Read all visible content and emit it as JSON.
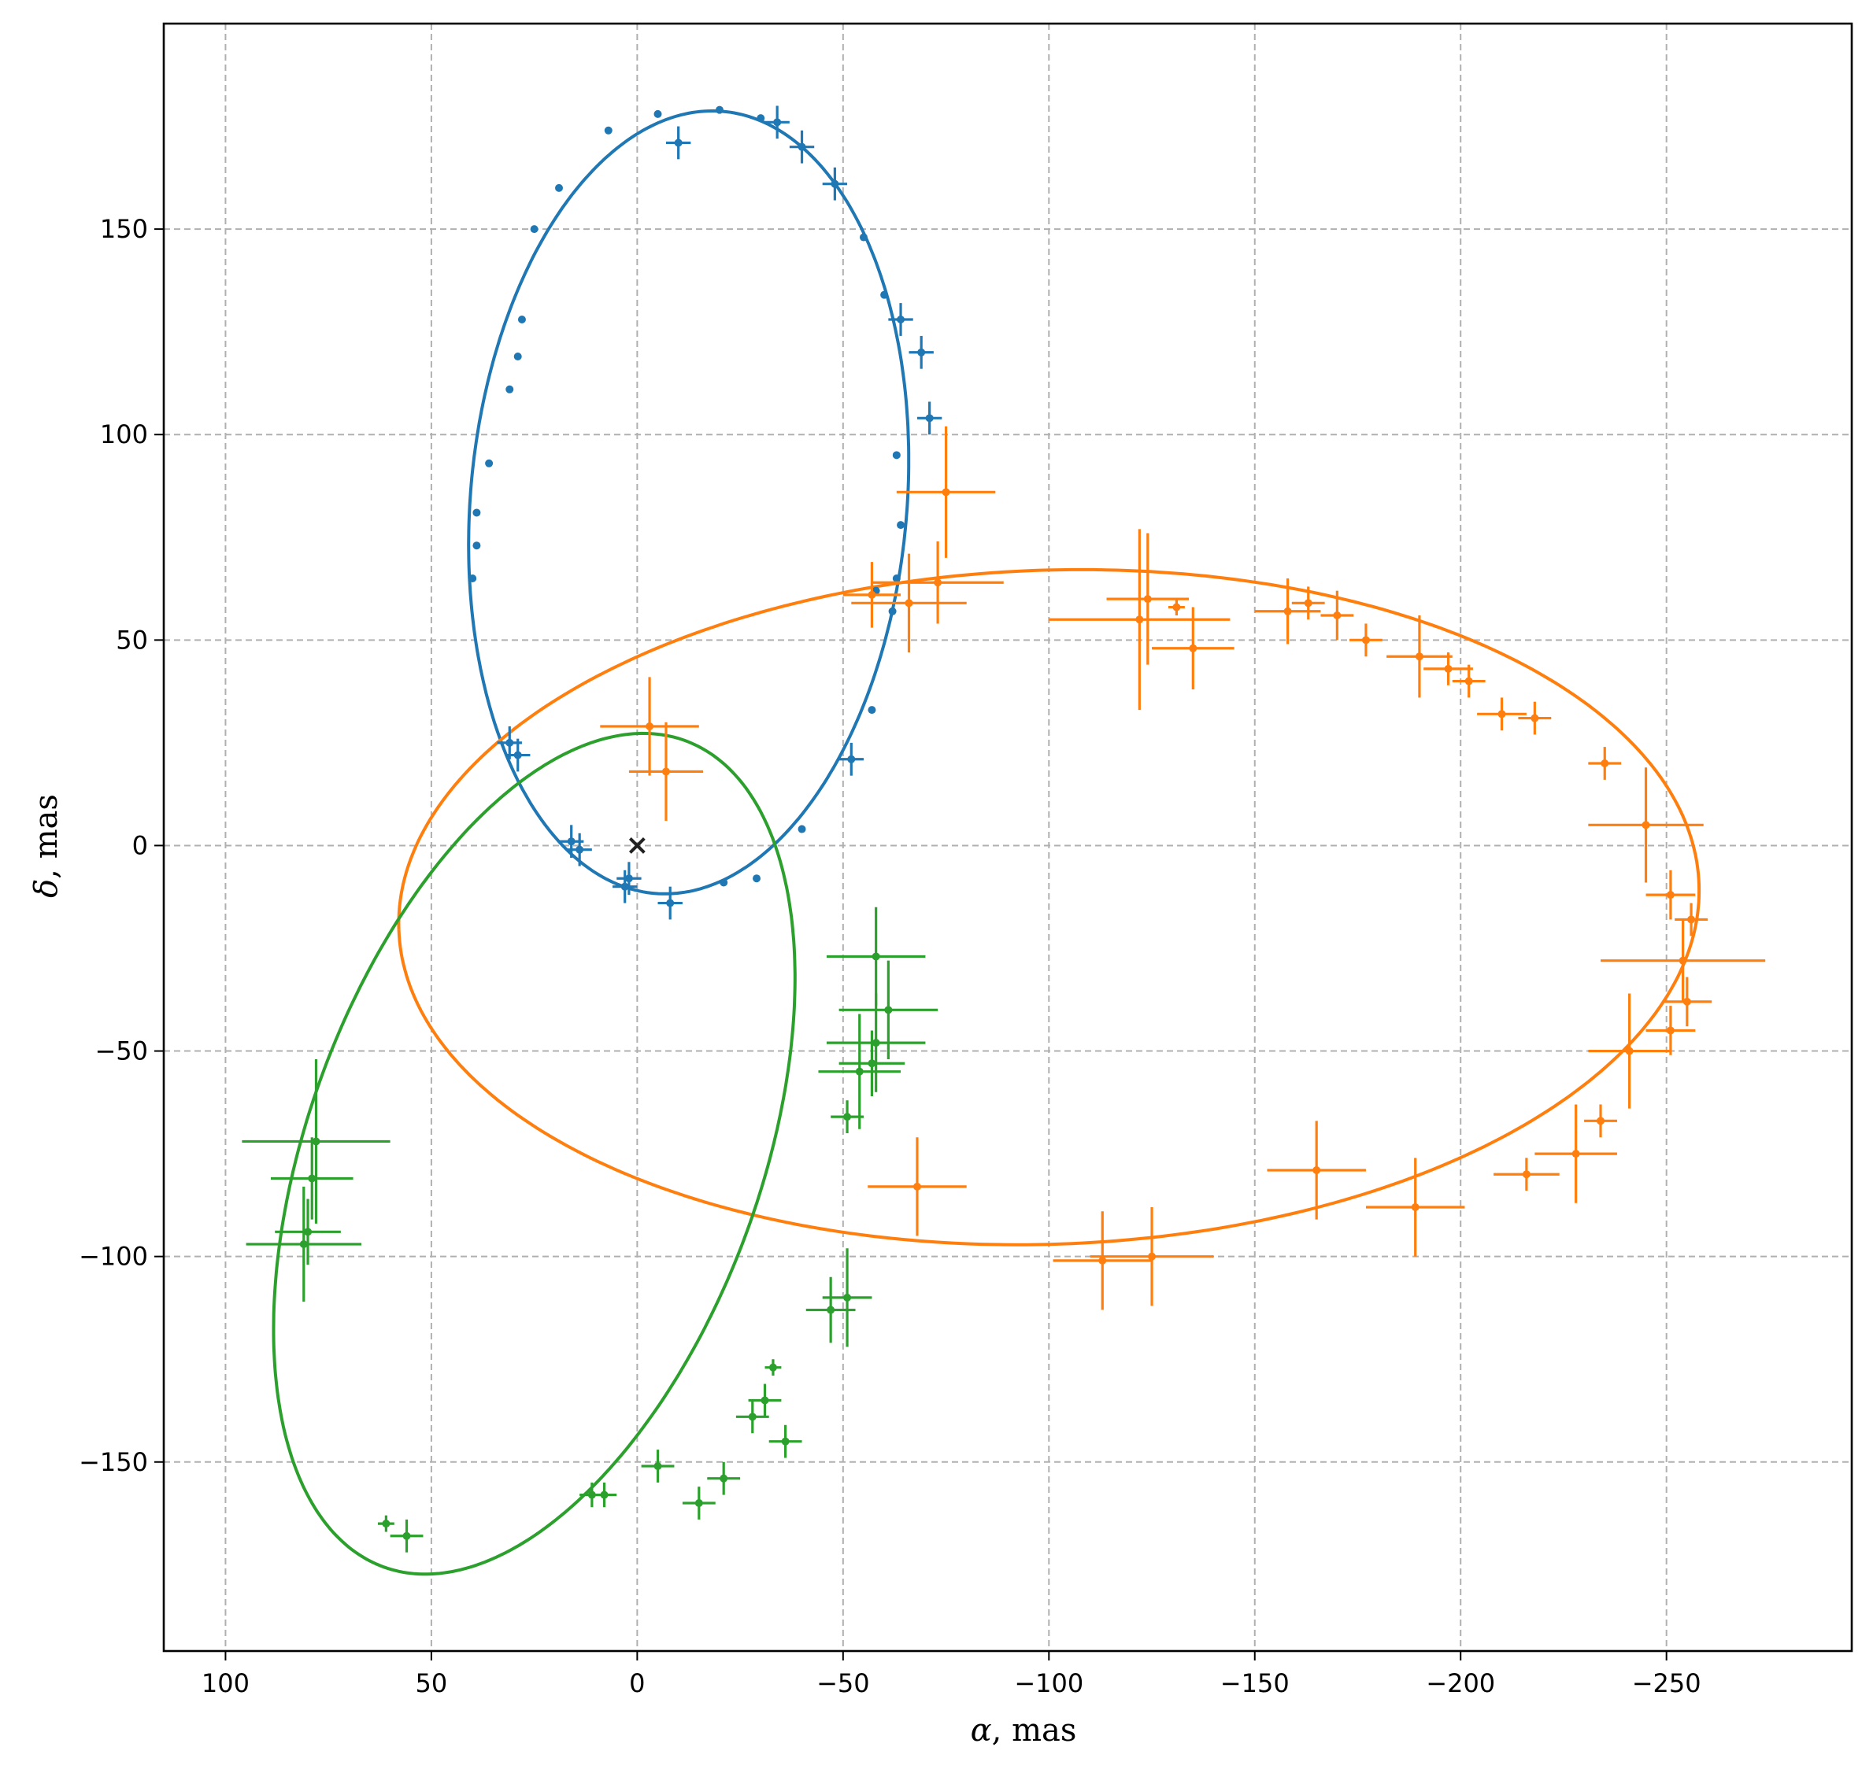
{
  "chart_data": {
    "type": "scatter",
    "title": "",
    "xlabel": {
      "symbol": "α",
      "text": ", mas"
    },
    "ylabel": {
      "symbol": "δ",
      "text": ", mas"
    },
    "xlim": [
      115,
      -295
    ],
    "ylim": [
      -196,
      200
    ],
    "x_inverted": true,
    "xticks": [
      100,
      50,
      0,
      -50,
      -100,
      -150,
      -200,
      -250
    ],
    "yticks": [
      150,
      100,
      50,
      0,
      -50,
      -100,
      -150
    ],
    "xtick_labels": [
      "100",
      "50",
      "0",
      "−50",
      "−100",
      "−150",
      "−200",
      "−250"
    ],
    "ytick_labels": [
      "150",
      "100",
      "50",
      "0",
      "−50",
      "−100",
      "−150"
    ],
    "grid": true,
    "colors": {
      "blue": "#1f77b4",
      "orange": "#ff7f0e",
      "green": "#2ca02c",
      "center": "#222222"
    },
    "center_marker": {
      "x": 0,
      "y": 0,
      "marker": "x"
    },
    "series": [
      {
        "color": "#1f77b4",
        "orbit": {
          "center": [
            -12.5,
            83.5
          ],
          "semi_axes": [
            53,
            95.5
          ],
          "rotation_deg": 5
        },
        "points": [
          [
            28,
            128,
            0.6,
            0.8
          ],
          [
            29,
            119,
            0.6,
            0.8
          ],
          [
            31,
            111,
            0.6,
            0.8
          ],
          [
            36,
            93,
            0.6,
            0.8
          ],
          [
            39,
            81,
            0.6,
            0.8
          ],
          [
            39,
            73,
            0.6,
            0.8
          ],
          [
            40,
            65,
            0.6,
            0.8
          ],
          [
            25,
            150,
            0.6,
            0.8
          ],
          [
            19,
            160,
            0.6,
            0.8
          ],
          [
            7,
            174,
            0.6,
            0.8
          ],
          [
            -5,
            178,
            0.6,
            0.8
          ],
          [
            -20,
            179,
            0.6,
            0.8
          ],
          [
            -30,
            177,
            0.6,
            0.8
          ],
          [
            -10,
            171,
            3,
            4
          ],
          [
            -34,
            176,
            3,
            4
          ],
          [
            -40,
            170,
            3,
            4
          ],
          [
            -48,
            161,
            3,
            4
          ],
          [
            -55,
            148,
            0.6,
            0.8
          ],
          [
            -60,
            134,
            0.6,
            0.8
          ],
          [
            -64,
            128,
            3,
            4
          ],
          [
            -69,
            120,
            3,
            4
          ],
          [
            -71,
            104,
            3,
            4
          ],
          [
            -63,
            95,
            0.6,
            0.8
          ],
          [
            -64,
            78,
            0.6,
            0.8
          ],
          [
            -63,
            65,
            0.6,
            0.8
          ],
          [
            -58,
            62,
            0.6,
            0.8
          ],
          [
            -62,
            57,
            0.6,
            0.8
          ],
          [
            -57,
            33,
            0.6,
            0.8
          ],
          [
            -52,
            21,
            3,
            4
          ],
          [
            -40,
            4,
            0.6,
            0.8
          ],
          [
            -29,
            -8,
            0.6,
            0.8
          ],
          [
            -21,
            -9,
            0.6,
            0.8
          ],
          [
            -8,
            -14,
            3,
            4
          ],
          [
            2,
            -8,
            3,
            4
          ],
          [
            3,
            -10,
            3,
            4
          ],
          [
            14,
            -1,
            3,
            4
          ],
          [
            16,
            1,
            3,
            4
          ],
          [
            31,
            25,
            3,
            4
          ],
          [
            29,
            22,
            3,
            4
          ]
        ]
      },
      {
        "color": "#ff7f0e",
        "orbit": {
          "center": [
            -100,
            -15
          ],
          "semi_axes": [
            158,
            82
          ],
          "rotation_deg": -2
        },
        "points": [
          [
            -3,
            29,
            12,
            12
          ],
          [
            -7,
            18,
            9,
            12
          ],
          [
            -75,
            86,
            12,
            16
          ],
          [
            -73,
            64,
            16,
            10
          ],
          [
            -66,
            59,
            14,
            12
          ],
          [
            -57,
            61,
            7,
            8
          ],
          [
            -122,
            55,
            22,
            22
          ],
          [
            -124,
            60,
            10,
            16
          ],
          [
            -131,
            58,
            2,
            2
          ],
          [
            -135,
            48,
            10,
            10
          ],
          [
            -158,
            57,
            8,
            8
          ],
          [
            -163,
            59,
            4,
            4
          ],
          [
            -170,
            56,
            4,
            6
          ],
          [
            -177,
            50,
            4,
            4
          ],
          [
            -190,
            46,
            8,
            10
          ],
          [
            -197,
            43,
            6,
            4
          ],
          [
            -202,
            40,
            4,
            4
          ],
          [
            -210,
            32,
            6,
            4
          ],
          [
            -218,
            31,
            4,
            4
          ],
          [
            -235,
            20,
            4,
            4
          ],
          [
            -245,
            5,
            14,
            14
          ],
          [
            -251,
            -12,
            6,
            6
          ],
          [
            -256,
            -18,
            4,
            4
          ],
          [
            -254,
            -28,
            20,
            10
          ],
          [
            -255,
            -38,
            6,
            6
          ],
          [
            -251,
            -45,
            6,
            6
          ],
          [
            -241,
            -50,
            10,
            14
          ],
          [
            -234,
            -67,
            4,
            4
          ],
          [
            -228,
            -75,
            10,
            12
          ],
          [
            -216,
            -80,
            8,
            4
          ],
          [
            -165,
            -79,
            12,
            12
          ],
          [
            -189,
            -88,
            12,
            12
          ],
          [
            -125,
            -100,
            15,
            12
          ],
          [
            -113,
            -101,
            12,
            12
          ],
          [
            -68,
            -83,
            12,
            12
          ]
        ]
      },
      {
        "color": "#2ca02c",
        "orbit": {
          "center": [
            25,
            -75
          ],
          "semi_axes": [
            55,
            107
          ],
          "rotation_deg": 20
        },
        "points": [
          [
            78,
            -72,
            18,
            20
          ],
          [
            79,
            -81,
            10,
            10
          ],
          [
            80,
            -94,
            8,
            8
          ],
          [
            81,
            -97,
            14,
            14
          ],
          [
            61,
            -165,
            2,
            2
          ],
          [
            56,
            -168,
            4,
            4
          ],
          [
            11,
            -158,
            3,
            3
          ],
          [
            8,
            -158,
            3,
            3
          ],
          [
            -5,
            -151,
            4,
            4
          ],
          [
            -15,
            -160,
            4,
            4
          ],
          [
            -21,
            -154,
            4,
            4
          ],
          [
            -28,
            -139,
            4,
            4
          ],
          [
            -31,
            -135,
            4,
            4
          ],
          [
            -36,
            -145,
            4,
            4
          ],
          [
            -33,
            -127,
            2,
            2
          ],
          [
            -47,
            -113,
            6,
            8
          ],
          [
            -51,
            -110,
            6,
            12
          ],
          [
            -54,
            -55,
            10,
            14
          ],
          [
            -57,
            -53,
            8,
            8
          ],
          [
            -58,
            -48,
            12,
            12
          ],
          [
            -58,
            -27,
            12,
            12
          ],
          [
            -61,
            -40,
            12,
            12
          ],
          [
            -51,
            -66,
            4,
            4
          ]
        ]
      }
    ]
  }
}
